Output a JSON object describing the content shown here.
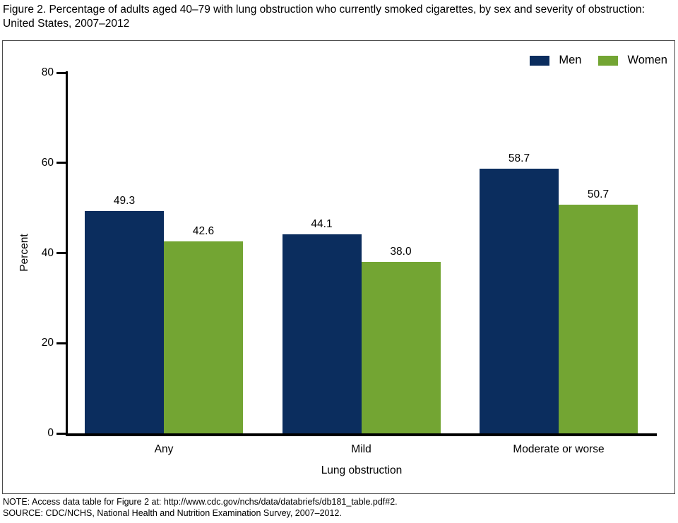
{
  "title": "Figure 2. Percentage of adults aged 40–79 with lung obstruction who currently smoked cigarettes, by sex and severity of obstruction: United States, 2007–2012",
  "legend": {
    "items": [
      {
        "label": "Men",
        "color": "#0B2D5E"
      },
      {
        "label": "Women",
        "color": "#73A533"
      }
    ]
  },
  "chart_data": {
    "type": "bar",
    "categories": [
      "Any",
      "Mild",
      "Moderate or worse"
    ],
    "series": [
      {
        "name": "Men",
        "color": "#0B2D5E",
        "values": [
          49.3,
          44.1,
          58.7
        ]
      },
      {
        "name": "Women",
        "color": "#73A533",
        "values": [
          42.6,
          38.0,
          50.7
        ]
      }
    ],
    "title": "Figure 2. Percentage of adults aged 40–79 with lung obstruction who currently smoked cigarettes, by sex and severity of obstruction: United States, 2007–2012",
    "xlabel": "Lung obstruction",
    "ylabel": "Percent",
    "ylim": [
      0,
      80
    ],
    "yticks": [
      0,
      20,
      40,
      60,
      80
    ],
    "grid": false,
    "legend_position": "top-right",
    "value_label_format": "one-decimal"
  },
  "notes": {
    "note": "NOTE: Access data table for Figure 2 at: http://www.cdc.gov/nchs/data/databriefs/db181_table.pdf#2.",
    "source": "SOURCE: CDC/NCHS, National Health and Nutrition Examination Survey, 2007–2012."
  }
}
